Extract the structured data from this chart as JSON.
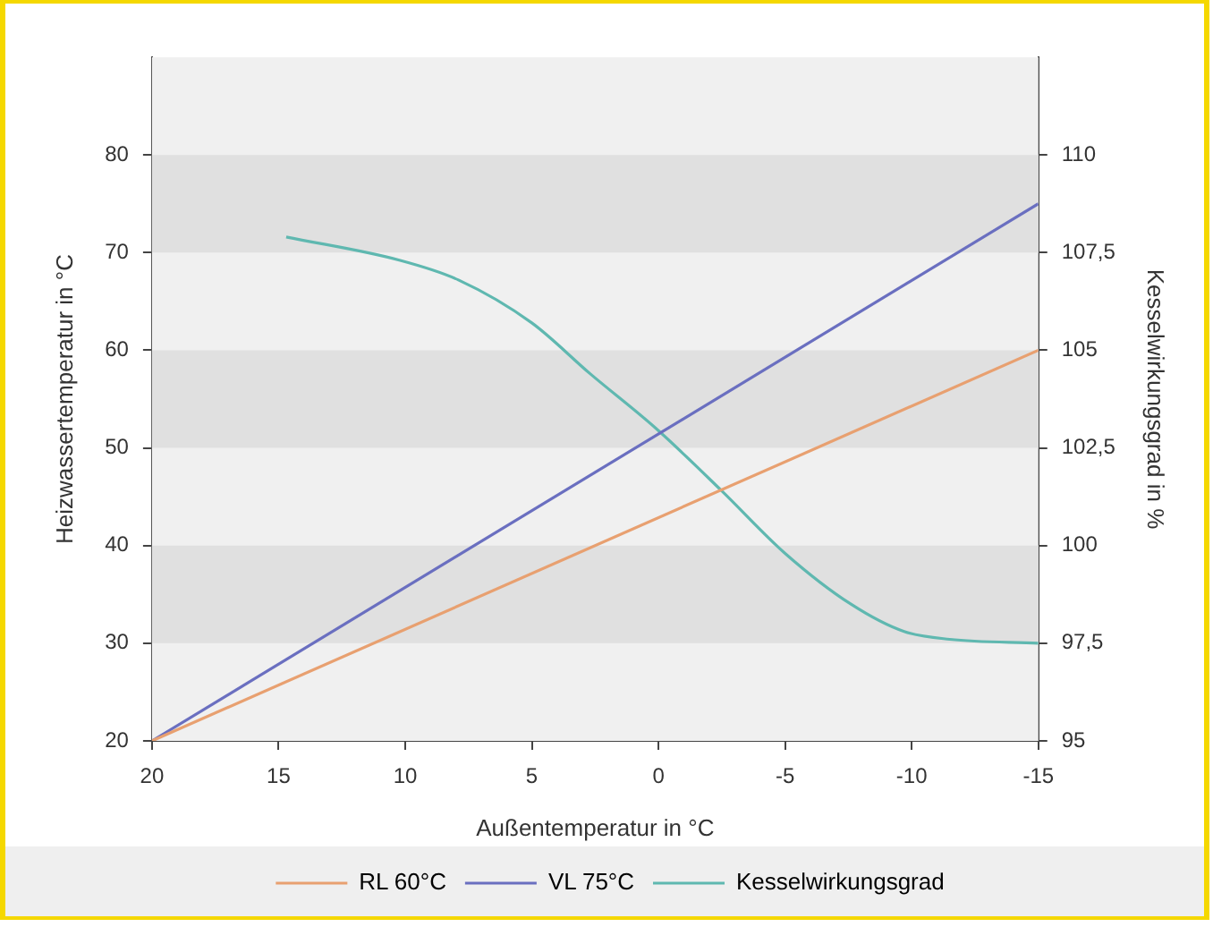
{
  "chart_data": {
    "type": "line",
    "xlabel": "Außentemperatur in °C",
    "ylabel": "Heizwassertemperatur in °C",
    "y2label": "Kesselwirkungsgrad in %",
    "xlim": [
      20,
      -15
    ],
    "xticks": [
      20,
      15,
      10,
      5,
      0,
      -5,
      -10,
      -15
    ],
    "ylim": [
      20,
      90
    ],
    "yticks": [
      20,
      30,
      40,
      50,
      60,
      70,
      80
    ],
    "y2lim": [
      95,
      112.5
    ],
    "y2ticks": [
      95,
      {
        "value": 97.5,
        "label": "97,5"
      },
      100,
      {
        "value": 102.5,
        "label": "102,5"
      },
      105,
      {
        "value": 107.5,
        "label": "107,5"
      },
      110
    ],
    "bands": [
      {
        "axis": "y",
        "from": 30,
        "to": 40,
        "color": "#e0e0e0"
      },
      {
        "axis": "y",
        "from": 50,
        "to": 60,
        "color": "#e0e0e0"
      },
      {
        "axis": "y",
        "from": 70,
        "to": 80,
        "color": "#e0e0e0"
      }
    ],
    "series": [
      {
        "name": "RL 60°C",
        "color": "#e8a070",
        "x": [
          20,
          -15
        ],
        "values": [
          20,
          60
        ]
      },
      {
        "name": "VL 75°C",
        "color": "#6a6fc0",
        "x": [
          20,
          -15
        ],
        "values": [
          20,
          75
        ]
      },
      {
        "name": "Kesselwirkungsgrad",
        "color": "#5fb8b0",
        "axis": "y2",
        "x": [
          14.7,
          10.2,
          7.9,
          5,
          2.7,
          0.1,
          -2.5,
          -5,
          -7.6,
          -9.7,
          -11.5,
          -15
        ],
        "values": [
          107.9,
          107.3,
          106.8,
          105.7,
          104.4,
          103,
          101.4,
          99.8,
          98.5,
          97.8,
          97.6,
          97.5
        ]
      }
    ],
    "legend": "bottom",
    "marker": "none",
    "line_style": "solid"
  }
}
